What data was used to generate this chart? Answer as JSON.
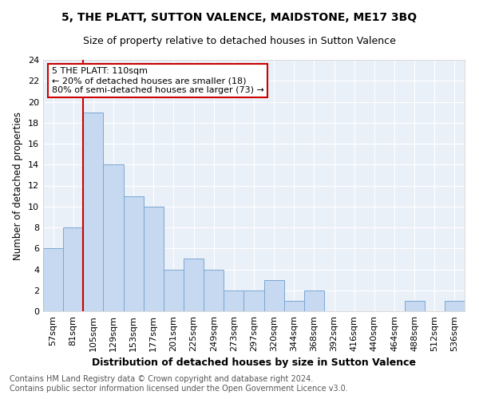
{
  "title": "5, THE PLATT, SUTTON VALENCE, MAIDSTONE, ME17 3BQ",
  "subtitle": "Size of property relative to detached houses in Sutton Valence",
  "xlabel": "Distribution of detached houses by size in Sutton Valence",
  "ylabel": "Number of detached properties",
  "footnote1": "Contains HM Land Registry data © Crown copyright and database right 2024.",
  "footnote2": "Contains public sector information licensed under the Open Government Licence v3.0.",
  "annotation_line1": "5 THE PLATT: 110sqm",
  "annotation_line2": "← 20% of detached houses are smaller (18)",
  "annotation_line3": "80% of semi-detached houses are larger (73) →",
  "bar_color": "#c6d9f0",
  "bar_edge_color": "#7ba7d4",
  "vline_color": "#cc0000",
  "vline_x_index": 2,
  "categories": [
    "57sqm",
    "81sqm",
    "105sqm",
    "129sqm",
    "153sqm",
    "177sqm",
    "201sqm",
    "225sqm",
    "249sqm",
    "273sqm",
    "297sqm",
    "320sqm",
    "344sqm",
    "368sqm",
    "392sqm",
    "416sqm",
    "440sqm",
    "464sqm",
    "488sqm",
    "512sqm",
    "536sqm"
  ],
  "values": [
    6,
    8,
    19,
    14,
    11,
    10,
    4,
    5,
    4,
    2,
    2,
    3,
    1,
    2,
    0,
    0,
    0,
    0,
    1,
    0,
    1
  ],
  "ylim": [
    0,
    24
  ],
  "yticks": [
    0,
    2,
    4,
    6,
    8,
    10,
    12,
    14,
    16,
    18,
    20,
    22,
    24
  ],
  "bg_color": "#eaf0f8",
  "grid_color": "#ffffff",
  "title_fontsize": 10,
  "subtitle_fontsize": 9,
  "xlabel_fontsize": 9,
  "ylabel_fontsize": 8.5,
  "tick_fontsize": 8,
  "annotation_fontsize": 8,
  "footnote_fontsize": 7
}
